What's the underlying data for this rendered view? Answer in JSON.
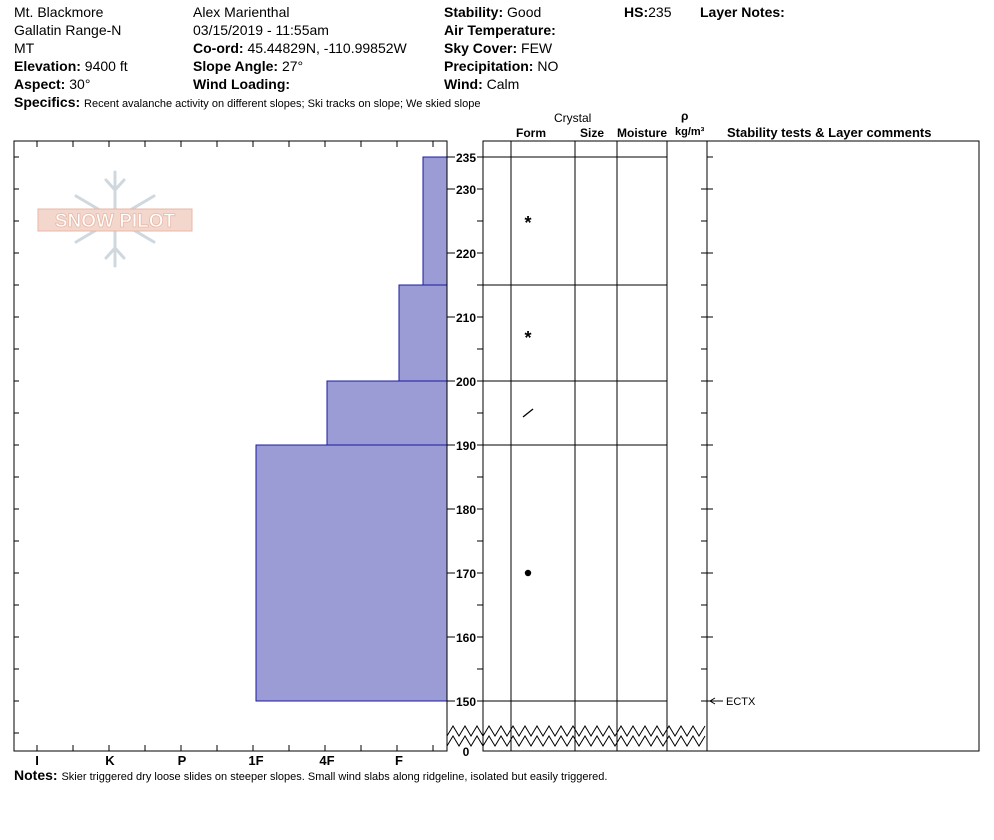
{
  "header": {
    "location": "Mt. Blackmore",
    "range": "Gallatin Range-N",
    "state": "MT",
    "elevation_label": "Elevation:",
    "elevation_value": "9400 ft",
    "aspect_label": "Aspect:",
    "aspect_value": "30°",
    "observer": "Alex Marienthal",
    "datetime": "03/15/2019 - 11:55am",
    "coord_label": "Co-ord:",
    "coord_value": "45.44829N, -110.99852W",
    "slope_label": "Slope Angle:",
    "slope_value": "27°",
    "wind_loading_label": "Wind Loading:",
    "wind_loading_value": "",
    "stability_label": "Stability:",
    "stability_value": "Good",
    "air_temp_label": "Air Temperature:",
    "air_temp_value": "",
    "sky_label": "Sky Cover:",
    "sky_value": "FEW",
    "precip_label": "Precipitation:",
    "precip_value": "NO",
    "wind_label": "Wind:",
    "wind_value": "Calm",
    "hs_label": "HS:",
    "hs_value": "235",
    "layer_notes_label": "Layer Notes:",
    "specifics_label": "Specifics:",
    "specifics_value": "Recent avalanche activity on different slopes;  Ski tracks on slope;  We skied slope"
  },
  "columns": {
    "crystal": "Crystal",
    "form": "Form",
    "size": "Size",
    "moisture": "Moisture",
    "rho": "ρ",
    "density_unit": "kg/m³",
    "stability_comments": "Stability tests & Layer comments"
  },
  "logo_text": "SNOW PILOT",
  "notes_label": "Notes:",
  "notes_value": "Skier triggered dry loose slides on steeper slopes. Small wind slabs along ridgeline, isolated but easily triggered.",
  "colors": {
    "hardness_fill": "#9b9bd6",
    "hardness_stroke": "#1a1aa0",
    "logo": "#e8b8a8"
  },
  "chart_data": {
    "type": "bar",
    "orientation": "horizontal",
    "x_axis_labels": [
      "I",
      "K",
      "P",
      "1F",
      "4F",
      "F"
    ],
    "y_ticks": [
      0,
      150,
      160,
      170,
      180,
      190,
      200,
      210,
      220,
      230,
      235
    ],
    "y_range": [
      150,
      235
    ],
    "y_axis_break": true,
    "hardness_layers": [
      {
        "top": 235,
        "bottom": 215,
        "hardness": "F"
      },
      {
        "top": 215,
        "bottom": 200,
        "hardness": "F"
      },
      {
        "top": 200,
        "bottom": 190,
        "hardness": "4F"
      },
      {
        "top": 190,
        "bottom": 150,
        "hardness": "1F"
      }
    ],
    "layer_boundaries": [
      235,
      215,
      200,
      190,
      150
    ],
    "crystal_forms": [
      {
        "height": 225,
        "symbol": "*"
      },
      {
        "height": 207,
        "symbol": "*"
      },
      {
        "height": 195,
        "symbol": "⁄"
      },
      {
        "height": 170,
        "symbol": "●"
      }
    ],
    "stability_tests": [
      {
        "height": 150,
        "label": "ECTX"
      }
    ]
  }
}
